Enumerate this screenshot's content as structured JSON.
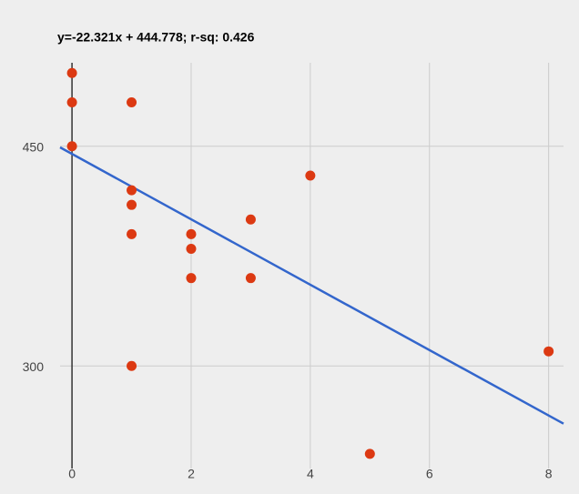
{
  "chart_data": {
    "type": "scatter",
    "title": "y=-22.321x +  444.778; r-sq: 0.426",
    "x": [
      0,
      0,
      0,
      1,
      1,
      1,
      1,
      1,
      2,
      2,
      2,
      3,
      3,
      4,
      5,
      8
    ],
    "values": [
      500,
      480,
      450,
      480,
      420,
      410,
      390,
      300,
      390,
      380,
      360,
      400,
      360,
      430,
      240,
      310
    ],
    "color": "#dc3912",
    "trendline": {
      "slope": -22.321,
      "intercept": 444.778,
      "color": "#3366cc"
    },
    "xlim": [
      -0.2,
      8.25
    ],
    "xticks": [
      0,
      2,
      4,
      6,
      8
    ],
    "ylim": [
      230,
      507
    ],
    "yticks": [
      300,
      450
    ],
    "grid": true
  }
}
